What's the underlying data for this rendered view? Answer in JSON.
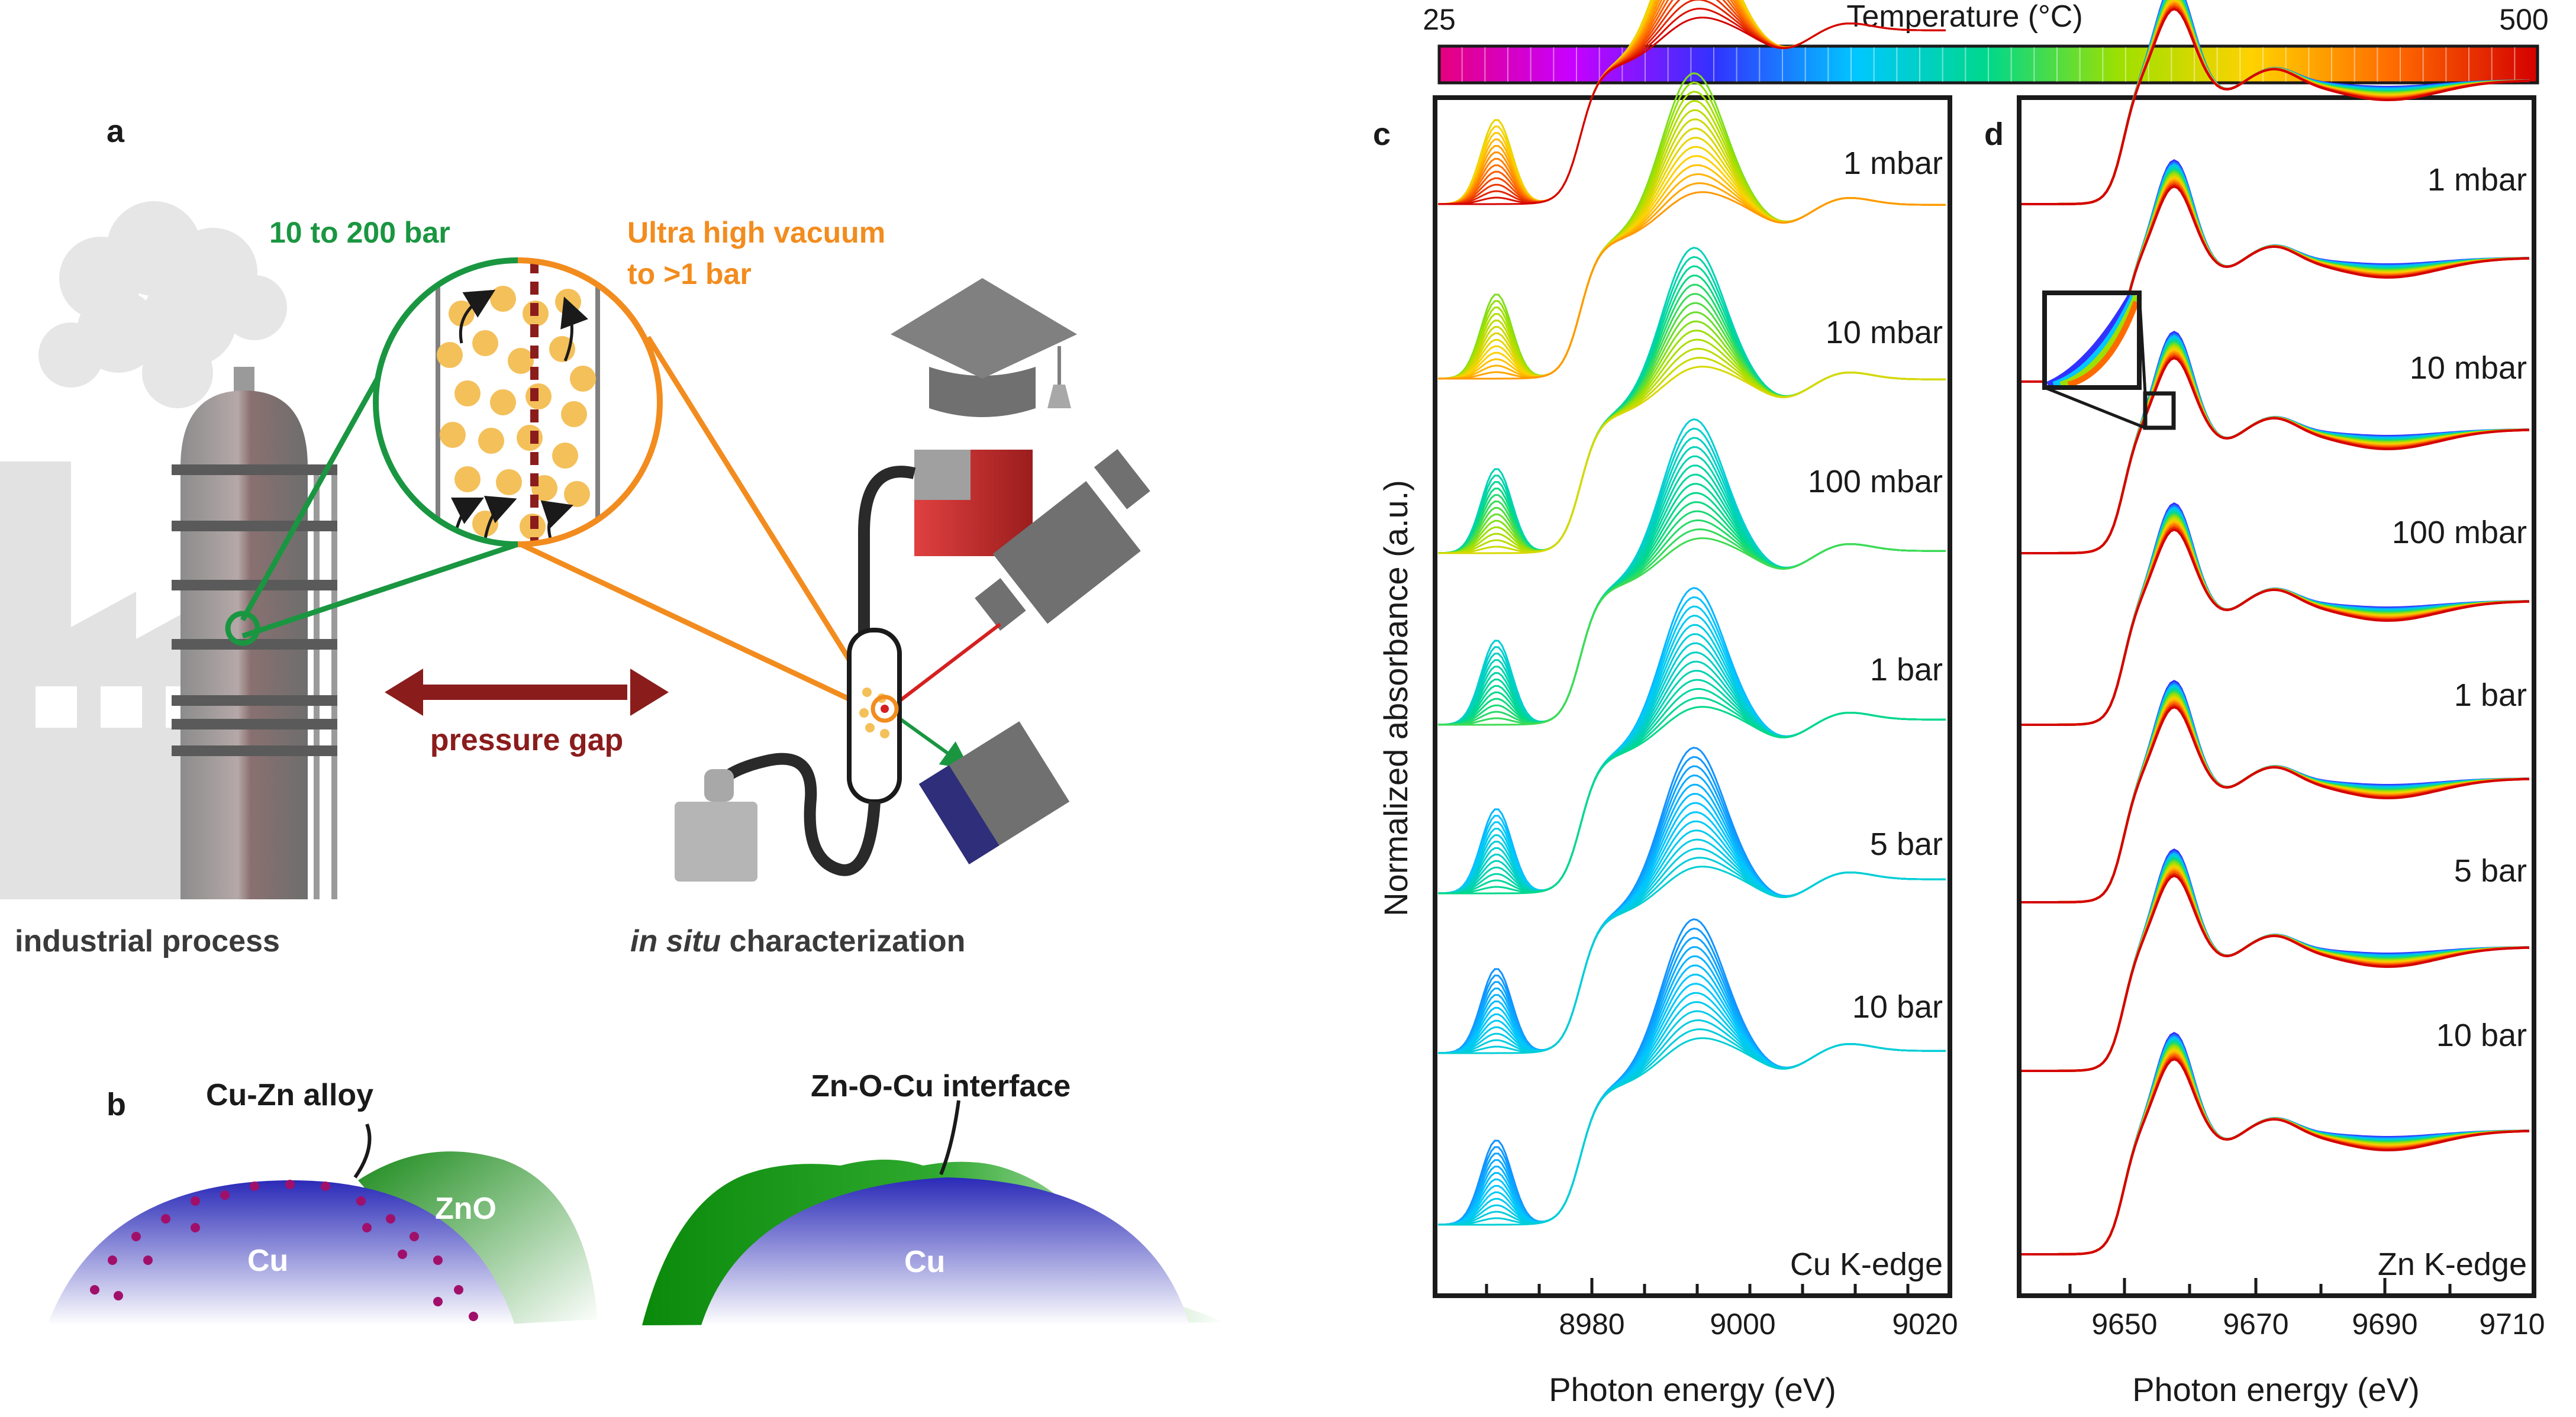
{
  "panels": {
    "a": {
      "letter": "a",
      "high_pressure_label": "10 to 200 bar",
      "low_pressure_label_line1": "Ultra high vacuum",
      "low_pressure_label_line2": "to >1 bar",
      "gap_label": "pressure gap",
      "left_caption": "industrial process",
      "right_caption_italic": "in situ",
      "right_caption_rest": " characterization"
    },
    "b": {
      "letter": "b",
      "alloy_label": "Cu-Zn alloy",
      "zno_label": "ZnO",
      "cu_label_left": "Cu",
      "interface_label": "Zn-O-Cu interface",
      "cu_label_right": "Cu"
    },
    "c": {
      "letter": "c",
      "edge_label": "Cu K-edge",
      "x_ticks": [
        "8980",
        "9000",
        "9020"
      ],
      "x_title": "Photon energy (eV)"
    },
    "d": {
      "letter": "d",
      "edge_label": "Zn K-edge",
      "x_ticks": [
        "9650",
        "9670",
        "9690",
        "9710"
      ],
      "x_title": "Photon energy (eV)"
    }
  },
  "pressures": [
    "1 mbar",
    "10 mbar",
    "100 mbar",
    "1 bar",
    "5 bar",
    "10 bar"
  ],
  "y_title": "Normalized absorbance (a.u.)",
  "colorbar": {
    "title": "Temperature (°C)",
    "min_label": "25",
    "max_label": "500",
    "stops": [
      "#e6007e",
      "#c800ff",
      "#3232ff",
      "#00c8ff",
      "#00d88a",
      "#9ee000",
      "#ffd200",
      "#ff6a00",
      "#d40000"
    ]
  },
  "colors": {
    "green": "#1a9641",
    "orange": "#f28c1e",
    "darkred": "#8b1c1c",
    "gray": "#7a7a7a"
  }
}
